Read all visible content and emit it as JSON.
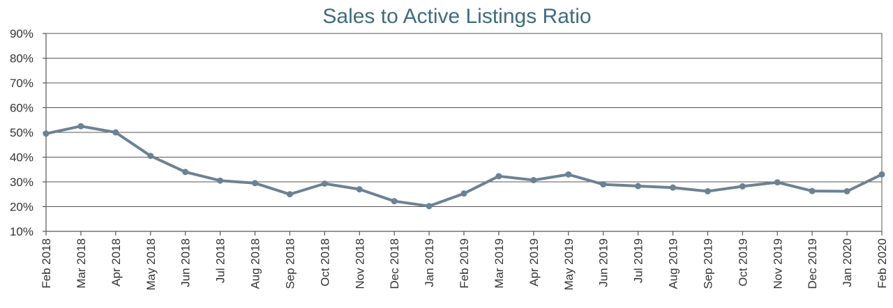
{
  "chart_data": {
    "type": "line",
    "title": "Sales to Active Listings Ratio",
    "xlabel": "",
    "ylabel": "",
    "ylim": [
      10,
      90
    ],
    "y_ticks": [
      {
        "value": 90,
        "label": "90%"
      },
      {
        "value": 80,
        "label": "80%"
      },
      {
        "value": 70,
        "label": "70%"
      },
      {
        "value": 60,
        "label": "60%"
      },
      {
        "value": 50,
        "label": "50%"
      },
      {
        "value": 40,
        "label": "40%"
      },
      {
        "value": 30,
        "label": "30%"
      },
      {
        "value": 20,
        "label": "20%"
      },
      {
        "value": 10,
        "label": "10%"
      }
    ],
    "grid": true,
    "legend": "none",
    "categories": [
      "Feb 2018",
      "Mar 2018",
      "Apr 2018",
      "May 2018",
      "Jun 2018",
      "Jul 2018",
      "Aug 2018",
      "Sep 2018",
      "Oct 2018",
      "Nov 2018",
      "Dec 2018",
      "Jan 2019",
      "Feb 2019",
      "Mar 2019",
      "Apr 2019",
      "May 2019",
      "Jun 2019",
      "Jul 2019",
      "Aug 2019",
      "Sep 2019",
      "Oct 2019",
      "Nov 2019",
      "Dec 2019",
      "Jan 2020",
      "Feb 2020"
    ],
    "series": [
      {
        "name": "Sales to Active Listings Ratio",
        "color": "#6b8294",
        "values": [
          49.5,
          52.5,
          50,
          40.5,
          34,
          30.5,
          29.5,
          25,
          29.3,
          27,
          22.2,
          20.2,
          25.3,
          32.3,
          30.7,
          33,
          29,
          28.3,
          27.7,
          26.2,
          28.2,
          29.8,
          26.3,
          26.2,
          33
        ]
      }
    ]
  }
}
